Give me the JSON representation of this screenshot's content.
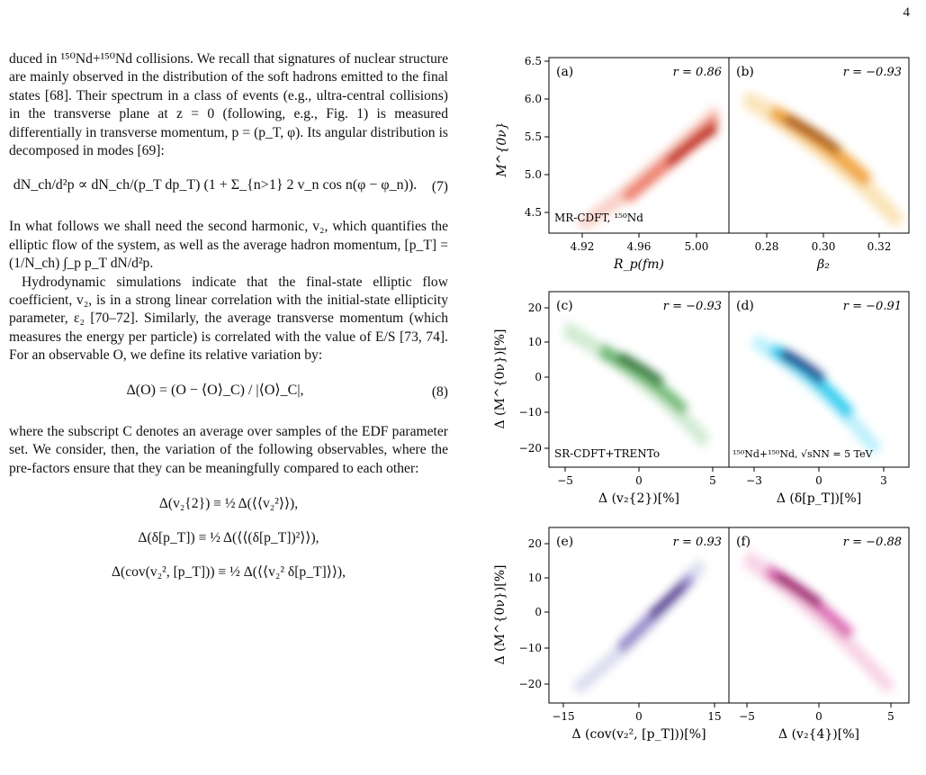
{
  "page_number": "4",
  "text": {
    "p1": "duced in ¹⁵⁰Nd+¹⁵⁰Nd collisions. We recall that signatures of nuclear structure are mainly observed in the distribution of the soft hadrons emitted to the final states [68]. Their spectrum in a class of events (e.g., ultra-central collisions) in the transverse plane at z = 0 (following, e.g., Fig. 1) is measured differentially in transverse momentum, p = (p_T, φ). Its angular distribution is decomposed in modes [69]:",
    "eq7": "dN_ch/d²p ∝ dN_ch/(p_T dp_T) (1 + Σ_{n>1} 2 v_n cos n(φ − φ_n)).",
    "eq7_num": "(7)",
    "p2": "In what follows we shall need the second harmonic, v₂, which quantifies the elliptic flow of the system, as well as the average hadron momentum, [p_T] = (1/N_ch) ∫_p p_T dN/d²p.",
    "p3": "Hydrodynamic simulations indicate that the final-state elliptic flow coefficient, v₂, is in a strong linear correlation with the initial-state ellipticity parameter, ε₂ [70–72]. Similarly, the average transverse momentum (which measures the energy per particle) is correlated with the value of E/S [73, 74]. For an observable O, we define its relative variation by:",
    "eq8": "Δ(O) = (O − ⟨O⟩_C) / |⟨O⟩_C|,",
    "eq8_num": "(8)",
    "p4": "where the subscript C denotes an average over samples of the EDF parameter set. We consider, then, the variation of the following observables, where the pre-factors ensure that they can be meaningfully compared to each other:",
    "eq9a": "Δ(v₂{2}) ≡ ½ Δ(⟨⟨v₂²⟩⟩),",
    "eq9b": "Δ(δ[p_T]) ≡ ½ Δ(⟨⟨(δ[p_T])²⟩⟩),",
    "eq9c": "Δ(cov(v₂², [p_T])) ≡ ½ Δ(⟨⟨v₂² δ[p_T]⟩⟩),"
  },
  "figure": {
    "panels": [
      {
        "id": "a",
        "tag": "(a)",
        "r": "r = 0.86",
        "note": "MR-CDFT, ¹⁵⁰Nd",
        "xlabel": "R_p(fm)",
        "xticks": [
          "4.92",
          "4.96",
          "5.00"
        ],
        "ylabel": "M^{0ν}",
        "yticks": [
          "4.5",
          "5.0",
          "5.5",
          "6.0",
          "6.5"
        ],
        "color": "#e0402a"
      },
      {
        "id": "b",
        "tag": "(b)",
        "r": "r = −0.93",
        "note": "",
        "xlabel": "β₂",
        "xticks": [
          "0.28",
          "0.30",
          "0.32"
        ],
        "color": "#f09a2c"
      },
      {
        "id": "c",
        "tag": "(c)",
        "r": "r = −0.93",
        "note": "SR-CDFT+TRENTo",
        "xlabel": "Δ (v₂{2})[%]",
        "xticks": [
          "−5",
          "0",
          "5"
        ],
        "ylabel": "Δ (M^{0ν})[%]",
        "yticks": [
          "−20",
          "−10",
          "0",
          "10",
          "20"
        ],
        "color": "#2e8b3f"
      },
      {
        "id": "d",
        "tag": "(d)",
        "r": "r = −0.91",
        "note": "¹⁵⁰Nd+¹⁵⁰Nd, √sNN = 5 TeV",
        "xlabel": "Δ (δ[p_T])[%]",
        "xticks": [
          "−3",
          "0",
          "3"
        ],
        "color": "#1aa9e6"
      },
      {
        "id": "e",
        "tag": "(e)",
        "r": "r = 0.93",
        "note": "",
        "xlabel": "Δ (cov(v₂², [p_T]))[%]",
        "xticks": [
          "−15",
          "0",
          "15"
        ],
        "ylabel": "Δ (M^{0ν})[%]",
        "yticks": [
          "−20",
          "−10",
          "0",
          "10",
          "20"
        ],
        "color": "#4f3a9a"
      },
      {
        "id": "f",
        "tag": "(f)",
        "r": "r = −0.88",
        "note": "",
        "xlabel": "Δ (v₂{4})[%]",
        "xticks": [
          "−5",
          "0",
          "5"
        ],
        "color": "#d02a8a"
      }
    ]
  }
}
